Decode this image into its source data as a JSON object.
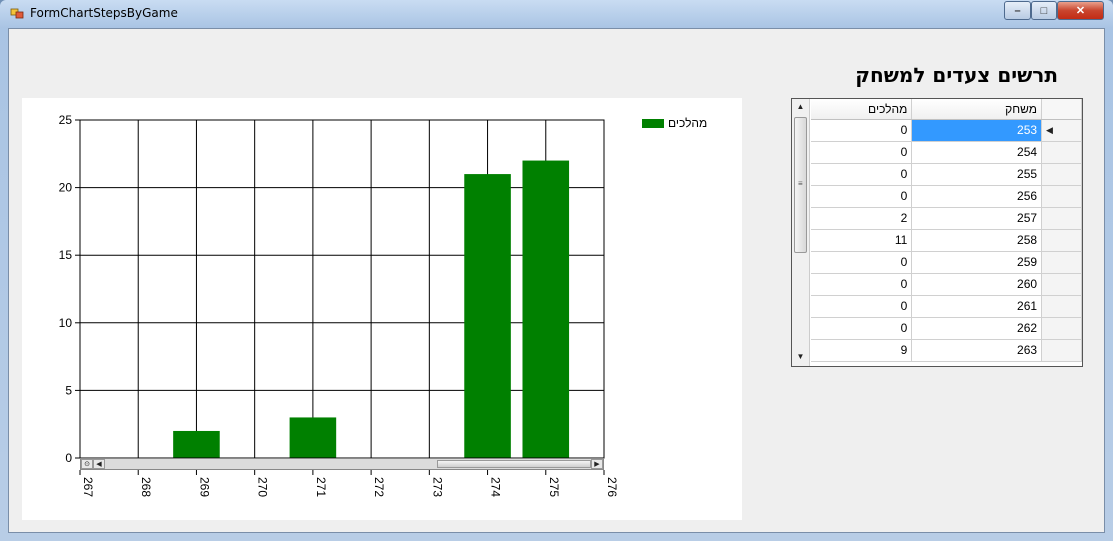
{
  "window": {
    "title": "FormChartStepsByGame"
  },
  "heading": "תרשים צעדים למשחק",
  "chart_data": {
    "type": "bar",
    "legend": [
      "מהלכים"
    ],
    "series": [
      {
        "name": "מהלכים",
        "color": "#008000",
        "points": [
          {
            "x": 269,
            "y": 2
          },
          {
            "x": 271,
            "y": 3
          },
          {
            "x": 274,
            "y": 21
          },
          {
            "x": 275,
            "y": 22
          }
        ]
      }
    ],
    "xlim": [
      267,
      276
    ],
    "ylim": [
      0,
      25
    ],
    "x_ticks": [
      "267",
      "268",
      "269",
      "270",
      "271",
      "272",
      "273",
      "274",
      "275",
      "276"
    ],
    "y_ticks": [
      "0",
      "5",
      "10",
      "15",
      "20",
      "25"
    ],
    "grid": true,
    "legend_position": "top-right"
  },
  "grid": {
    "columns": [
      "משחק",
      "מהלכים"
    ],
    "rows": [
      {
        "game": "253",
        "moves": "0"
      },
      {
        "game": "254",
        "moves": "0"
      },
      {
        "game": "255",
        "moves": "0"
      },
      {
        "game": "256",
        "moves": "0"
      },
      {
        "game": "257",
        "moves": "2"
      },
      {
        "game": "258",
        "moves": "11"
      },
      {
        "game": "259",
        "moves": "0"
      },
      {
        "game": "260",
        "moves": "0"
      },
      {
        "game": "261",
        "moves": "0"
      },
      {
        "game": "262",
        "moves": "0"
      },
      {
        "game": "263",
        "moves": "9"
      }
    ],
    "selected_row": 0
  }
}
